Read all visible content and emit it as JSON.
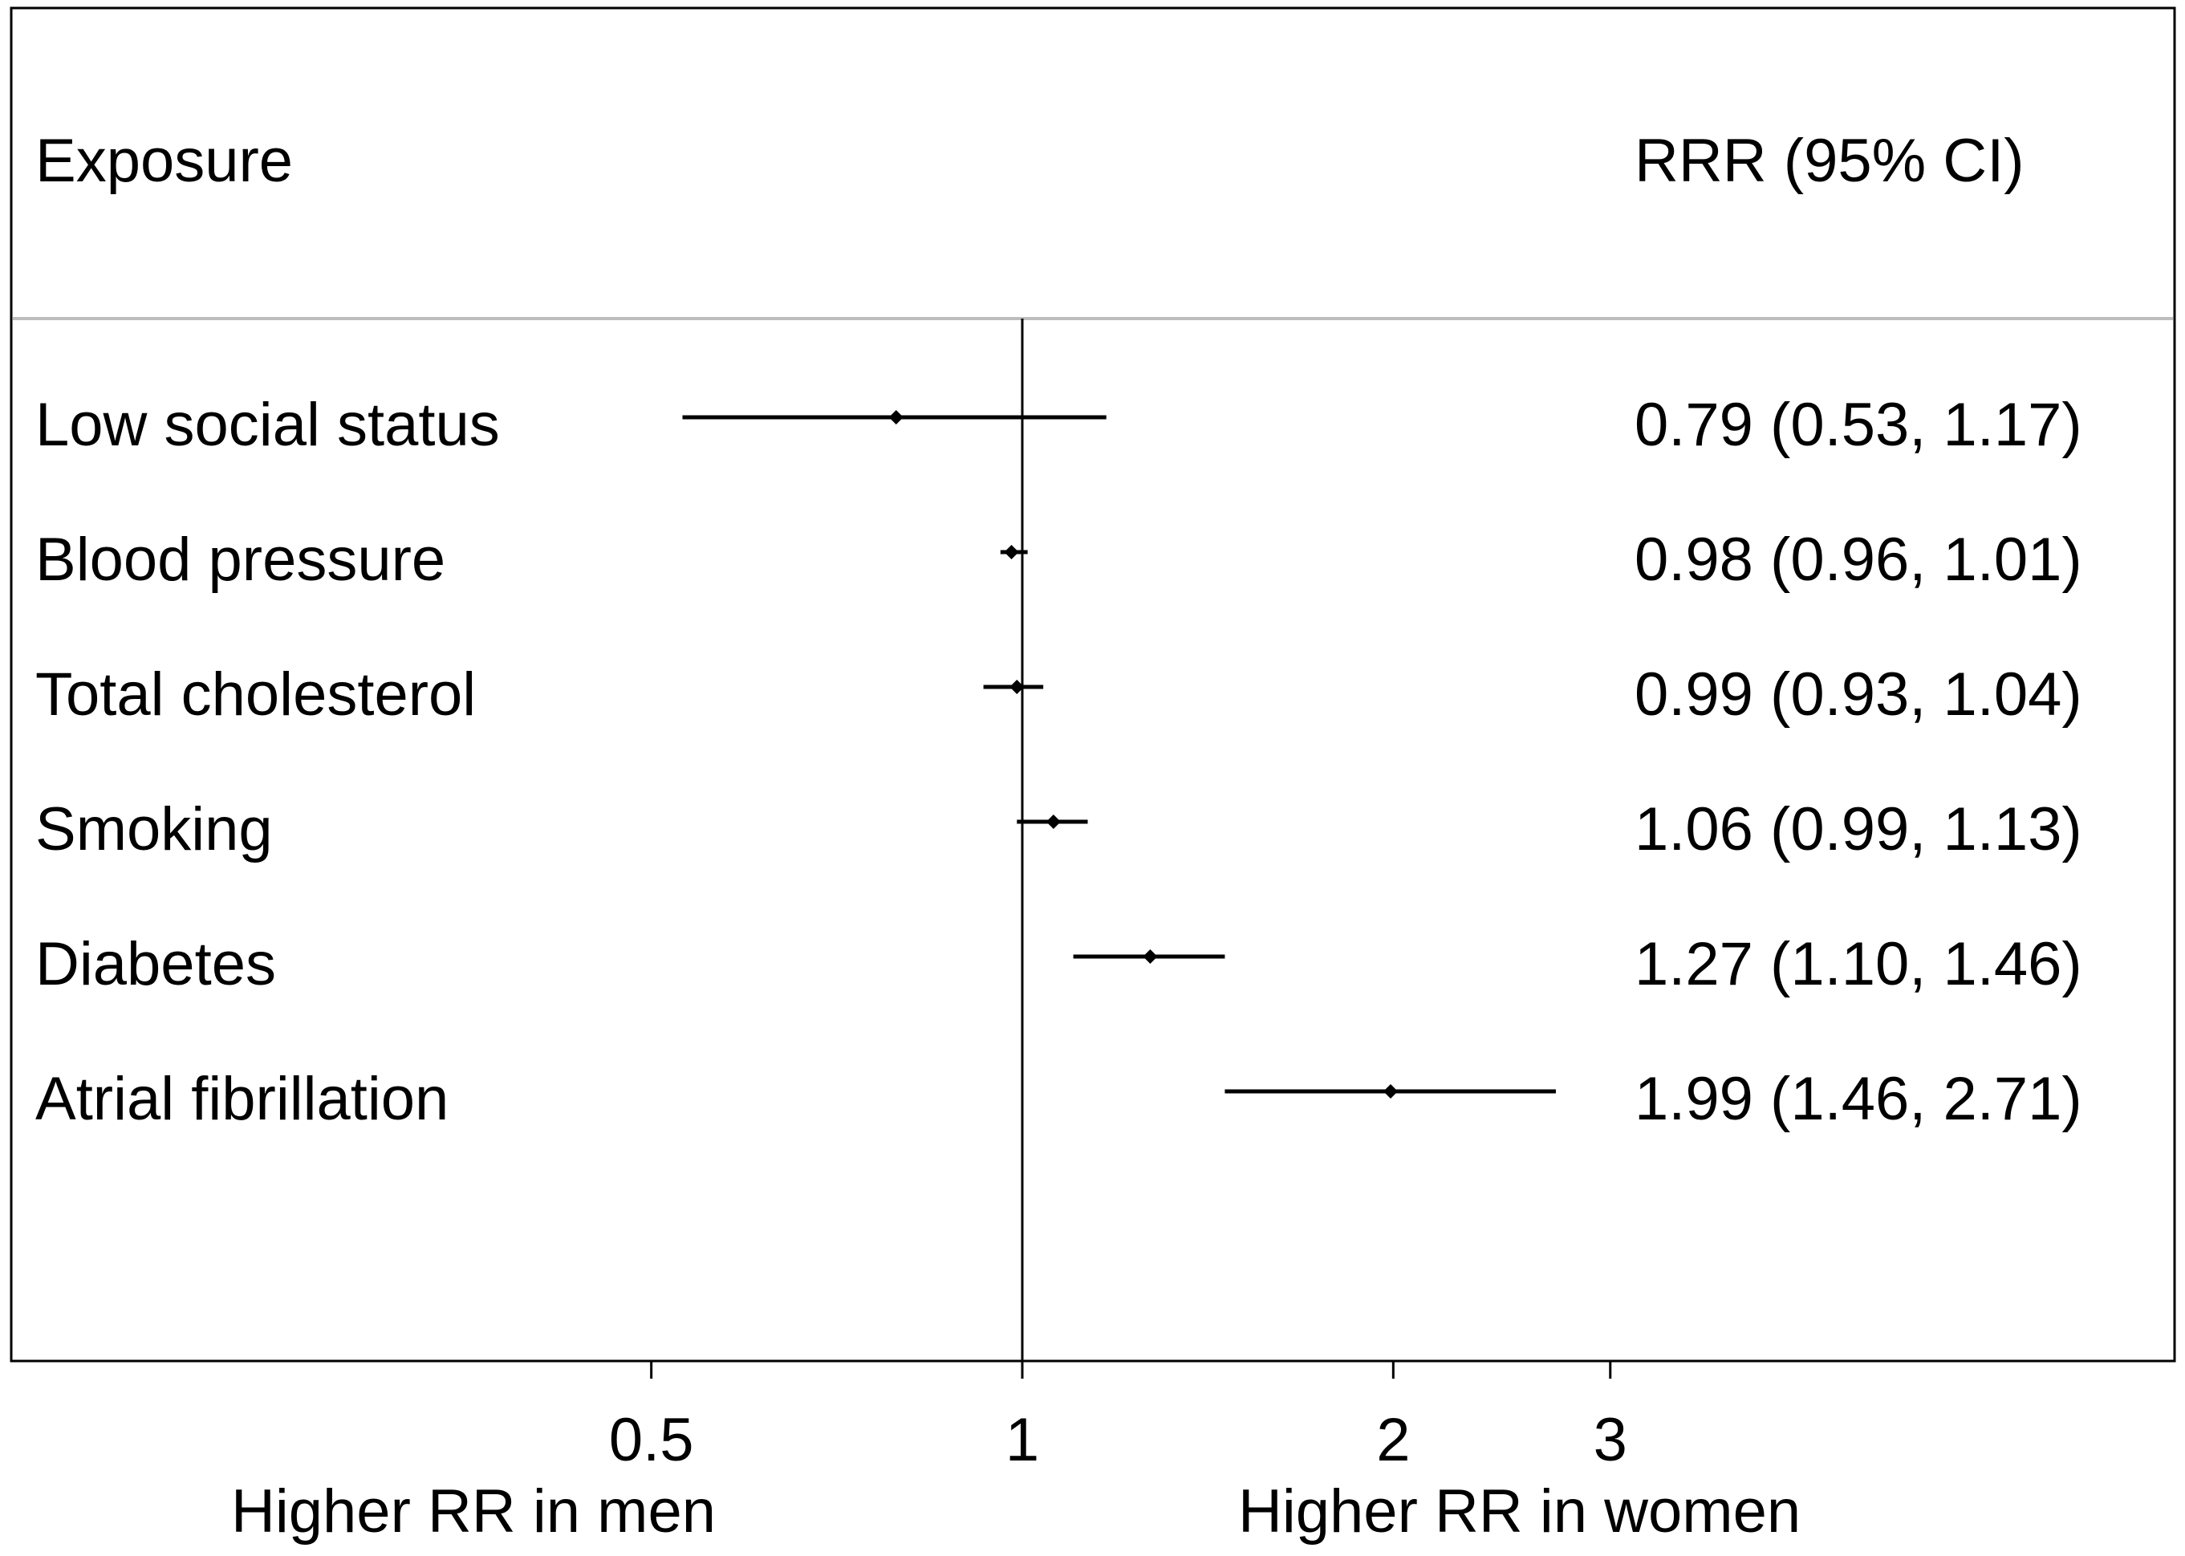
{
  "chart_data": {
    "type": "forest",
    "scale": "log",
    "headers": {
      "exposure": "Exposure",
      "estimate": "RRR (95% CI)"
    },
    "rows": [
      {
        "label": "Low social status",
        "rrr": 0.79,
        "lo": 0.53,
        "hi": 1.17,
        "text": "0.79 (0.53, 1.17)"
      },
      {
        "label": "Blood pressure",
        "rrr": 0.98,
        "lo": 0.96,
        "hi": 1.01,
        "text": "0.98 (0.96, 1.01)"
      },
      {
        "label": "Total cholesterol",
        "rrr": 0.99,
        "lo": 0.93,
        "hi": 1.04,
        "text": "0.99 (0.93, 1.04)"
      },
      {
        "label": "Smoking",
        "rrr": 1.06,
        "lo": 0.99,
        "hi": 1.13,
        "text": "1.06 (0.99, 1.13)"
      },
      {
        "label": "Diabetes",
        "rrr": 1.27,
        "lo": 1.1,
        "hi": 1.46,
        "text": "1.27 (1.10, 1.46)"
      },
      {
        "label": "Atrial fibrillation",
        "rrr": 1.99,
        "lo": 1.46,
        "hi": 2.71,
        "text": "1.99 (1.46, 2.71)"
      }
    ],
    "x_ticks": [
      0.5,
      1,
      2,
      3
    ],
    "x_tick_labels": [
      "0.5",
      "1",
      "2",
      "3"
    ],
    "reference_line": 1,
    "left_axis_label": "Higher RR in men",
    "right_axis_label": "Higher RR in women"
  }
}
